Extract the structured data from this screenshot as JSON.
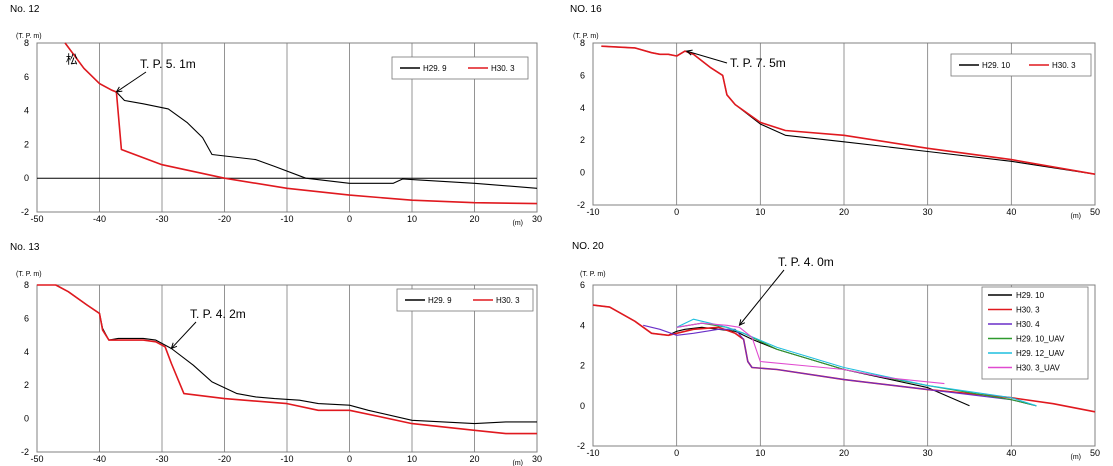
{
  "chart_data": [
    {
      "id": "no12",
      "type": "line",
      "title": "No. 12",
      "ylabel": "(T. P. m)",
      "xunit": "(m)",
      "xlim": [
        -50,
        30
      ],
      "ylim": [
        -2,
        8
      ],
      "xticks": [
        -50,
        -40,
        -30,
        -20,
        -10,
        0,
        10,
        20,
        30
      ],
      "yticks": [
        -2,
        0,
        2,
        4,
        6,
        8
      ],
      "grid": true,
      "legend": "top-right",
      "annotation": {
        "text": "T. P. 5. 1m",
        "x": -37.3,
        "y": 5.1
      },
      "marker": {
        "text": "松",
        "x": -42.5,
        "y": 6.6
      },
      "series": [
        {
          "name": "H29. 9",
          "color": "#000000",
          "x": [
            -45.5,
            -42.5,
            -40,
            -38,
            -37.3,
            -36,
            -33,
            -29,
            -26,
            -23.5,
            -22,
            -15,
            -12,
            -7,
            0,
            7,
            8.5,
            11,
            20,
            30
          ],
          "y": [
            8,
            6.5,
            5.6,
            5.2,
            5.1,
            4.6,
            4.4,
            4.1,
            3.3,
            2.4,
            1.4,
            1.1,
            0.7,
            0,
            -0.3,
            -0.3,
            -0.05,
            -0.1,
            -0.3,
            -0.6
          ]
        },
        {
          "name": "H30. 3",
          "color": "#e0191f",
          "x": [
            -45.5,
            -42.5,
            -40,
            -38,
            -37.3,
            -36.5,
            -30,
            -20,
            -10,
            0,
            10,
            20,
            30
          ],
          "y": [
            8,
            6.5,
            5.6,
            5.2,
            5.1,
            1.7,
            0.8,
            0,
            -0.6,
            -1,
            -1.3,
            -1.45,
            -1.5
          ]
        }
      ]
    },
    {
      "id": "no16",
      "type": "line",
      "title": "NO. 16",
      "ylabel": "(T. P. m)",
      "xunit": "(m)",
      "xlim": [
        -10,
        50
      ],
      "ylim": [
        -2,
        8
      ],
      "xticks": [
        -10,
        0,
        10,
        20,
        30,
        40,
        50
      ],
      "yticks": [
        -2,
        0,
        2,
        4,
        6,
        8
      ],
      "grid": true,
      "legend": "top-right",
      "annotation": {
        "text": "T. P. 7. 5m",
        "x": 1.2,
        "y": 7.5
      },
      "series": [
        {
          "name": "H29. 10",
          "color": "#000000",
          "x": [
            -9,
            -5,
            -3,
            -2,
            -1,
            0,
            1,
            2,
            4,
            5.5,
            6,
            7,
            10,
            13,
            20,
            30,
            40,
            50
          ],
          "y": [
            7.8,
            7.7,
            7.4,
            7.3,
            7.3,
            7.2,
            7.5,
            7.3,
            6.5,
            6,
            4.8,
            4.2,
            3,
            2.3,
            1.9,
            1.3,
            0.7,
            -0.1
          ]
        },
        {
          "name": "H30. 3",
          "color": "#e0191f",
          "x": [
            -9,
            -5,
            -3,
            -2,
            -1,
            0,
            1,
            2,
            4,
            5.5,
            6,
            7,
            10,
            13,
            20,
            30,
            40,
            50
          ],
          "y": [
            7.8,
            7.7,
            7.4,
            7.3,
            7.3,
            7.2,
            7.5,
            7.3,
            6.5,
            6,
            4.8,
            4.2,
            3.1,
            2.6,
            2.3,
            1.5,
            0.8,
            -0.1
          ]
        }
      ]
    },
    {
      "id": "no13",
      "type": "line",
      "title": "No. 13",
      "ylabel": "(T. P. m)",
      "xunit": "(m)",
      "xlim": [
        -50,
        30
      ],
      "ylim": [
        -2,
        8
      ],
      "xticks": [
        -50,
        -40,
        -30,
        -20,
        -10,
        0,
        10,
        20,
        30
      ],
      "yticks": [
        -2,
        0,
        2,
        4,
        6,
        8
      ],
      "grid": true,
      "legend": "top-right",
      "annotation": {
        "text": "T. P. 4. 2m",
        "x": -28.5,
        "y": 4.2
      },
      "series": [
        {
          "name": "H29. 9",
          "color": "#000000",
          "x": [
            -50,
            -47,
            -45,
            -42,
            -40,
            -39.5,
            -38.5,
            -37,
            -33,
            -31,
            -28.5,
            -25,
            -22,
            -18,
            -15,
            -12,
            -8,
            -5,
            0,
            3,
            10,
            20,
            25,
            30
          ],
          "y": [
            8,
            8,
            7.6,
            6.8,
            6.3,
            5.4,
            4.7,
            4.8,
            4.8,
            4.7,
            4.2,
            3.2,
            2.2,
            1.5,
            1.3,
            1.2,
            1.1,
            0.9,
            0.8,
            0.5,
            -0.1,
            -0.3,
            -0.2,
            -0.2
          ]
        },
        {
          "name": "H30. 3",
          "color": "#e0191f",
          "x": [
            -50,
            -47,
            -45,
            -42,
            -40,
            -39.5,
            -38.5,
            -37,
            -33,
            -31,
            -29.5,
            -28.5,
            -26.5,
            -20,
            -10,
            -5,
            0,
            5,
            10,
            20,
            25,
            30
          ],
          "y": [
            8,
            8,
            7.6,
            6.8,
            6.3,
            5.3,
            4.7,
            4.7,
            4.7,
            4.6,
            4.3,
            3.3,
            1.5,
            1.2,
            0.9,
            0.5,
            0.5,
            0.1,
            -0.3,
            -0.7,
            -0.9,
            -0.9
          ]
        }
      ]
    },
    {
      "id": "no20",
      "type": "line",
      "title": "NO. 20",
      "ylabel": "(T. P. m)",
      "xunit": "(m)",
      "xlim": [
        -10,
        50
      ],
      "ylim": [
        -2,
        6
      ],
      "xticks": [
        -10,
        0,
        10,
        20,
        30,
        40,
        50
      ],
      "yticks": [
        -2,
        0,
        2,
        4,
        6
      ],
      "grid": true,
      "legend": "top-right",
      "annotation": {
        "text": "T. P. 4. 0m",
        "x": 7.5,
        "y": 4.0
      },
      "series": [
        {
          "name": "H29. 10",
          "color": "#000000",
          "x": [
            -10,
            -8,
            -5,
            -3,
            -1,
            0,
            1,
            3,
            5,
            7,
            8,
            9,
            12,
            20,
            30,
            35
          ],
          "y": [
            5,
            4.9,
            4.2,
            3.6,
            3.5,
            3.7,
            3.8,
            3.9,
            3.8,
            3.7,
            3.5,
            3.3,
            2.8,
            1.8,
            0.9,
            0
          ]
        },
        {
          "name": "H30. 3",
          "color": "#e0191f",
          "x": [
            -10,
            -8,
            -5,
            -3,
            -1,
            0,
            2,
            5,
            7,
            8,
            8.5,
            9,
            12,
            20,
            30,
            40,
            45,
            50
          ],
          "y": [
            5,
            4.9,
            4.2,
            3.6,
            3.5,
            3.6,
            3.8,
            3.9,
            3.6,
            3.3,
            2.2,
            1.9,
            1.8,
            1.3,
            0.8,
            0.4,
            0.1,
            -0.3
          ]
        },
        {
          "name": "H30. 4",
          "color": "#6a2fc8",
          "x": [
            -4,
            -2,
            0,
            2,
            5,
            7,
            8,
            8.5,
            9,
            12,
            20,
            30,
            40,
            43
          ],
          "y": [
            4,
            3.8,
            3.5,
            3.6,
            3.8,
            3.8,
            3.3,
            2.2,
            1.9,
            1.8,
            1.3,
            0.8,
            0.3,
            0
          ]
        },
        {
          "name": "H29. 10_UAV",
          "color": "#2e9a2e",
          "x": [
            0,
            3,
            6,
            8,
            12,
            20,
            30,
            40,
            43
          ],
          "y": [
            3.9,
            4.1,
            3.9,
            3.6,
            2.8,
            1.8,
            1,
            0.3,
            0
          ]
        },
        {
          "name": "H29. 12_UAV",
          "color": "#1fbfdf",
          "x": [
            0,
            2,
            4,
            6,
            8,
            12,
            20,
            30,
            40,
            43
          ],
          "y": [
            3.9,
            4.3,
            4.1,
            3.9,
            3.6,
            2.9,
            1.9,
            1,
            0.4,
            0
          ]
        },
        {
          "name": "H30. 3_UAV",
          "color": "#e04ad0",
          "x": [
            0,
            3,
            6,
            7.5,
            9,
            10,
            15,
            20,
            25,
            32
          ],
          "y": [
            3.9,
            4.1,
            4.0,
            3.9,
            3.4,
            2.2,
            2.0,
            1.8,
            1.4,
            1.1
          ]
        }
      ]
    }
  ]
}
